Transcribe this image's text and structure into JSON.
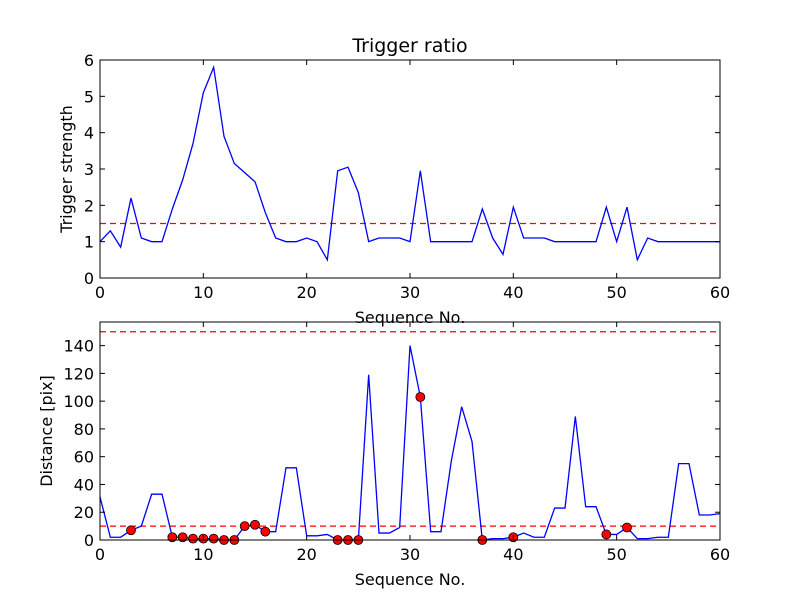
{
  "chart_data": [
    {
      "type": "line",
      "title": "Trigger ratio",
      "xlabel": "Sequence No.",
      "ylabel": "Trigger strength",
      "xlim": [
        0,
        60
      ],
      "ylim": [
        0,
        6
      ],
      "xticks": [
        "0",
        "10",
        "20",
        "30",
        "40",
        "50",
        "60"
      ],
      "yticks": [
        "0",
        "1",
        "2",
        "3",
        "4",
        "5",
        "6"
      ],
      "grid": false,
      "line_color": "#0000ff",
      "threshold_color": "#ff0000",
      "series": [
        {
          "x": [
            0,
            1,
            2,
            3,
            4,
            5,
            6,
            7,
            8,
            9,
            10,
            11,
            12,
            13,
            14,
            15,
            16,
            17,
            18,
            19,
            20,
            21,
            22,
            23,
            24,
            25,
            26,
            27,
            28,
            29,
            30,
            31,
            32,
            33,
            34,
            35,
            36,
            37,
            38,
            39,
            40,
            41,
            42,
            43,
            44,
            45,
            46,
            47,
            48,
            49,
            50,
            51,
            52,
            53,
            54,
            55,
            56,
            57,
            58,
            59,
            60
          ],
          "y": [
            1.0,
            1.3,
            0.85,
            2.2,
            1.1,
            1.0,
            1.0,
            1.9,
            2.7,
            3.7,
            5.1,
            5.8,
            3.9,
            3.15,
            2.9,
            2.65,
            1.8,
            1.1,
            1.0,
            1.0,
            1.1,
            1.0,
            0.5,
            2.95,
            3.05,
            2.35,
            1.0,
            1.1,
            1.1,
            1.1,
            1.0,
            2.95,
            1.0,
            1.0,
            1.0,
            1.0,
            1.0,
            1.9,
            1.1,
            0.65,
            1.95,
            1.1,
            1.1,
            1.1,
            1.0,
            1.0,
            1.0,
            1.0,
            1.0,
            1.95,
            1.0,
            1.95,
            0.5,
            1.1,
            1.0,
            1.0,
            1.0,
            1.0,
            1.0,
            1.0,
            1.0
          ]
        }
      ],
      "threshold": 1.5
    },
    {
      "type": "line",
      "title": "",
      "xlabel": "Sequence No.",
      "ylabel": "Distance [pix]",
      "xlim": [
        0,
        60
      ],
      "ylim": [
        0,
        157
      ],
      "xticks": [
        "0",
        "10",
        "20",
        "30",
        "40",
        "50",
        "60"
      ],
      "yticks": [
        "0",
        "20",
        "40",
        "60",
        "80",
        "100",
        "120",
        "140"
      ],
      "grid": false,
      "line_color": "#0000ff",
      "threshold_color": "#ff0000",
      "marker_color": "#ff0000",
      "series": [
        {
          "x": [
            0,
            1,
            2,
            3,
            4,
            5,
            6,
            7,
            8,
            9,
            10,
            11,
            12,
            13,
            14,
            15,
            16,
            17,
            18,
            19,
            20,
            21,
            22,
            23,
            24,
            25,
            26,
            27,
            28,
            29,
            30,
            31,
            32,
            33,
            34,
            35,
            36,
            37,
            38,
            39,
            40,
            41,
            42,
            43,
            44,
            45,
            46,
            47,
            48,
            49,
            50,
            51,
            52,
            53,
            54,
            55,
            56,
            57,
            58,
            59,
            60
          ],
          "y": [
            31,
            2,
            2,
            7,
            10,
            33,
            33,
            2,
            2,
            1,
            1,
            1,
            0,
            0,
            10,
            11,
            6,
            6,
            52,
            52,
            3,
            3,
            4,
            0,
            0,
            0,
            119,
            5,
            5,
            9,
            140,
            103,
            6,
            6,
            57,
            96,
            71,
            0,
            1,
            1,
            2,
            5,
            2,
            2,
            23,
            23,
            89,
            24,
            24,
            4,
            4,
            9,
            1,
            1,
            2,
            2,
            55,
            55,
            18,
            18,
            19
          ]
        }
      ],
      "markers": {
        "x": [
          3,
          7,
          8,
          9,
          10,
          11,
          12,
          13,
          14,
          15,
          16,
          23,
          24,
          25,
          31,
          37,
          40,
          49,
          51
        ],
        "y": [
          7,
          2,
          2,
          1,
          1,
          1,
          0,
          0,
          10,
          11,
          6,
          0,
          0,
          0,
          103,
          0,
          2,
          4,
          9
        ]
      },
      "thresholds": [
        150,
        10
      ]
    }
  ]
}
